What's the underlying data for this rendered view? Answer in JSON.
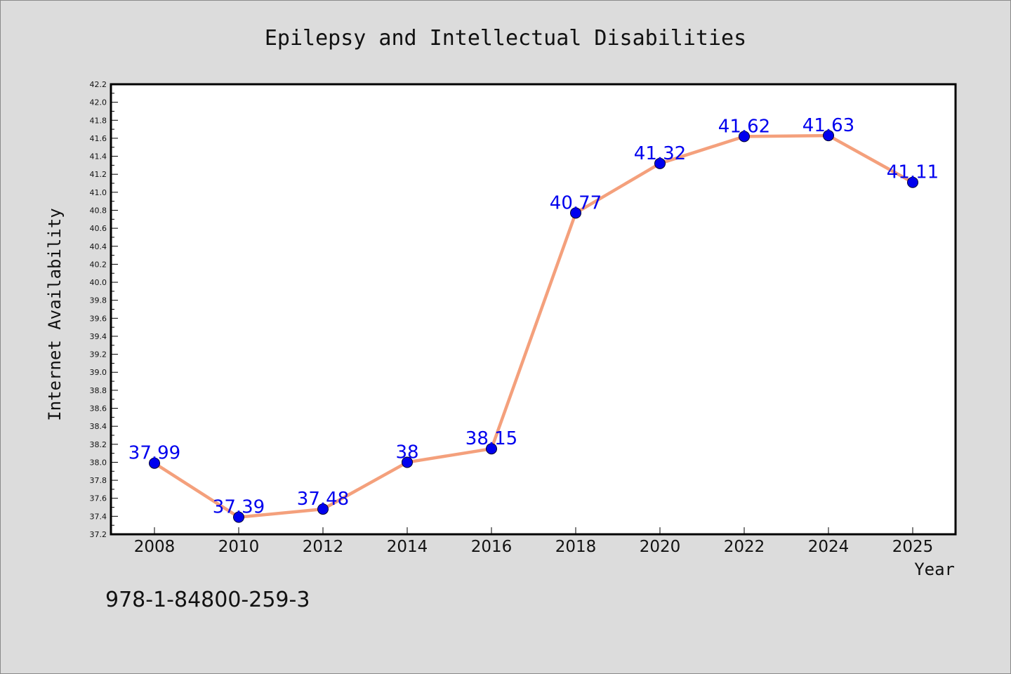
{
  "chart_data": {
    "type": "line",
    "title": "Epilepsy and Intellectual Disabilities",
    "xlabel": "Year",
    "ylabel": "Internet Availability",
    "categories": [
      "2008",
      "2010",
      "2012",
      "2014",
      "2016",
      "2018",
      "2020",
      "2022",
      "2024",
      "2025"
    ],
    "values": [
      37.99,
      37.39,
      37.48,
      38,
      38.15,
      40.77,
      41.32,
      41.62,
      41.63,
      41.11
    ],
    "data_labels": [
      "37.99",
      "37.39",
      "37.48",
      "38",
      "38.15",
      "40.77",
      "41.32",
      "41.62",
      "41.63",
      "41.11"
    ],
    "ylim": [
      37.2,
      42.2
    ],
    "ytick_labels": [
      "37.2",
      "37.4",
      "37.6",
      "37.8",
      "38.0",
      "38.2",
      "38.4",
      "38.6",
      "38.8",
      "39.0",
      "39.2",
      "39.4",
      "39.6",
      "39.8",
      "40.0",
      "40.2",
      "40.4",
      "40.6",
      "40.8",
      "41.0",
      "41.2",
      "41.4",
      "41.6",
      "41.8",
      "42.0",
      "42.2"
    ],
    "grid": false,
    "line_color": "#f4a07c",
    "marker_color": "#0000ee"
  },
  "footer": {
    "text": "978-1-84800-259-3"
  }
}
